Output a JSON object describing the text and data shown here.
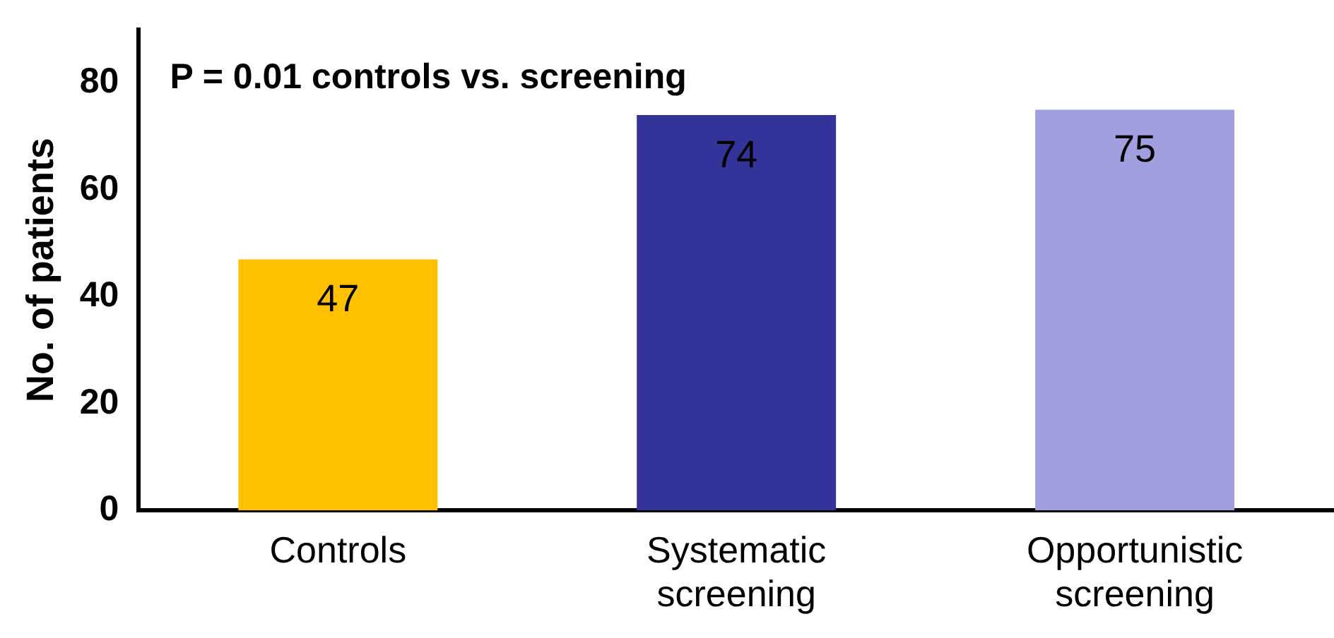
{
  "chart_data": {
    "type": "bar",
    "ylabel": "No. of patients",
    "categories": [
      "Controls",
      "Systematic screening",
      "Opportunistic screening"
    ],
    "values": [
      47,
      74,
      75
    ],
    "colors": [
      "#ffc000",
      "#333399",
      "#a0a0e0"
    ],
    "ylim": [
      0,
      90
    ],
    "yticks": [
      0,
      20,
      40,
      60,
      80
    ],
    "grid": false,
    "legend": false,
    "data_labels": true,
    "annotations": [
      "P = 0.01 controls vs. screening"
    ]
  }
}
